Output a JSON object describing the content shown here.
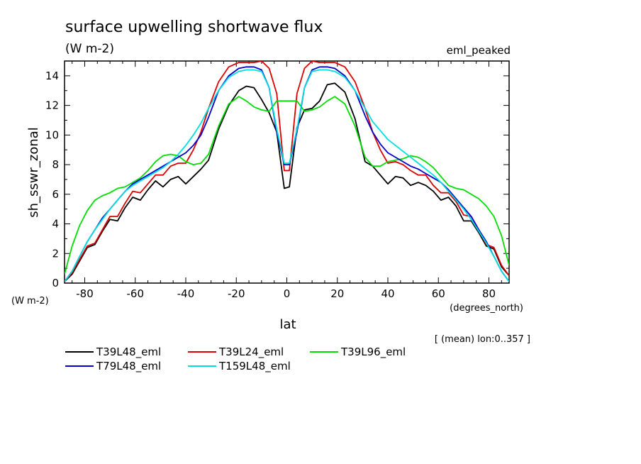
{
  "chart_data": {
    "type": "line",
    "title": "surface upwelling shortwave flux",
    "units": "(W m-2)",
    "tag": "eml_peaked",
    "ylabel": "sh_sswr_zonal",
    "yunits": "(W m-2)",
    "xlabel": "lat",
    "xunits": "(degrees_north)",
    "note": "[ (mean) lon:0..357 ]",
    "xlim": [
      -88,
      88
    ],
    "ylim": [
      0,
      15
    ],
    "xticks": [
      -80,
      -60,
      -40,
      -20,
      0,
      20,
      40,
      60,
      80
    ],
    "xtick_labels": [
      "-80",
      "-60",
      "-40",
      "-20",
      "0",
      "20",
      "40",
      "60",
      "80"
    ],
    "yticks": [
      0,
      2,
      4,
      6,
      8,
      10,
      12,
      14
    ],
    "ytick_labels": [
      "0",
      "2",
      "4",
      "6",
      "8",
      "10",
      "12",
      "14"
    ],
    "grid": false,
    "legend_position": "bottom",
    "series": [
      {
        "name": "T39L48_eml",
        "color": "#000000",
        "x": [
          -88,
          -85,
          -82,
          -79,
          -76,
          -73,
          -70,
          -67,
          -64,
          -61,
          -58,
          -55,
          -52,
          -49,
          -46,
          -43,
          -40,
          -37,
          -34,
          -31,
          -27,
          -23,
          -19,
          -16,
          -13,
          -10,
          -7,
          -4,
          -1,
          1,
          4,
          7,
          10,
          13,
          16,
          19,
          23,
          27,
          31,
          34,
          37,
          40,
          43,
          46,
          49,
          52,
          55,
          58,
          61,
          64,
          67,
          70,
          73,
          76,
          79,
          82,
          85,
          88
        ],
        "values": [
          0.1,
          0.6,
          1.5,
          2.4,
          2.6,
          3.5,
          4.3,
          4.2,
          5.1,
          5.8,
          5.6,
          6.3,
          6.9,
          6.5,
          7.0,
          7.2,
          6.7,
          7.2,
          7.7,
          8.3,
          10.4,
          12.0,
          13.0,
          13.3,
          13.2,
          12.4,
          11.5,
          10.2,
          6.4,
          6.5,
          10.5,
          11.7,
          11.8,
          12.3,
          13.4,
          13.5,
          12.9,
          11.1,
          8.2,
          7.9,
          7.3,
          6.7,
          7.2,
          7.1,
          6.6,
          6.8,
          6.6,
          6.2,
          5.6,
          5.8,
          5.2,
          4.2,
          4.2,
          3.4,
          2.5,
          2.3,
          1.1,
          0.5
        ]
      },
      {
        "name": "T39L24_eml",
        "color": "#dd0000",
        "x": [
          -88,
          -85,
          -82,
          -79,
          -76,
          -73,
          -70,
          -67,
          -64,
          -61,
          -58,
          -55,
          -52,
          -49,
          -46,
          -43,
          -40,
          -37,
          -34,
          -31,
          -27,
          -23,
          -19,
          -16,
          -13,
          -10,
          -7,
          -4,
          -1,
          1,
          4,
          7,
          10,
          13,
          16,
          19,
          23,
          27,
          31,
          34,
          37,
          40,
          43,
          46,
          49,
          52,
          55,
          58,
          61,
          64,
          67,
          70,
          73,
          76,
          79,
          82,
          85,
          88
        ],
        "values": [
          0.1,
          0.7,
          1.6,
          2.5,
          2.7,
          3.6,
          4.5,
          4.5,
          5.4,
          6.2,
          6.1,
          6.7,
          7.3,
          7.3,
          7.9,
          8.1,
          8.1,
          9.0,
          10.2,
          11.8,
          13.6,
          14.6,
          14.9,
          14.9,
          14.9,
          15.0,
          14.5,
          12.8,
          7.6,
          7.6,
          12.8,
          14.5,
          15.0,
          14.9,
          14.9,
          14.9,
          14.6,
          13.6,
          11.8,
          10.2,
          9.0,
          8.1,
          8.2,
          8.0,
          7.6,
          7.3,
          7.3,
          6.6,
          6.1,
          6.1,
          5.5,
          4.6,
          4.5,
          3.6,
          2.6,
          2.4,
          1.2,
          0.5
        ]
      },
      {
        "name": "T39L96_eml",
        "color": "#00dd00",
        "x": [
          -88,
          -85,
          -82,
          -79,
          -76,
          -73,
          -70,
          -67,
          -64,
          -61,
          -58,
          -55,
          -52,
          -49,
          -46,
          -43,
          -40,
          -37,
          -34,
          -31,
          -27,
          -23,
          -19,
          -16,
          -13,
          -10,
          -7,
          -4,
          -1,
          1,
          4,
          7,
          10,
          13,
          16,
          19,
          23,
          27,
          31,
          34,
          37,
          40,
          43,
          46,
          49,
          52,
          55,
          58,
          61,
          64,
          67,
          70,
          73,
          76,
          79,
          82,
          85,
          88
        ],
        "values": [
          0.6,
          2.5,
          3.9,
          4.9,
          5.6,
          5.9,
          6.1,
          6.4,
          6.5,
          6.8,
          7.1,
          7.6,
          8.2,
          8.6,
          8.7,
          8.6,
          8.2,
          8.0,
          8.1,
          8.7,
          10.6,
          12.1,
          12.6,
          12.3,
          11.9,
          11.7,
          11.6,
          12.3,
          12.3,
          12.3,
          12.3,
          11.6,
          11.7,
          11.9,
          12.3,
          12.6,
          12.1,
          10.6,
          8.5,
          7.9,
          7.9,
          8.2,
          8.3,
          8.4,
          8.6,
          8.5,
          8.2,
          7.8,
          7.2,
          6.6,
          6.4,
          6.3,
          6.0,
          5.7,
          5.2,
          4.5,
          3.2,
          1.2
        ]
      },
      {
        "name": "T79L48_eml",
        "color": "#0000cc",
        "x": [
          -88,
          -85,
          -82,
          -79,
          -76,
          -73,
          -70,
          -67,
          -64,
          -61,
          -58,
          -55,
          -52,
          -49,
          -46,
          -43,
          -40,
          -37,
          -34,
          -31,
          -27,
          -23,
          -19,
          -16,
          -13,
          -10,
          -7,
          -4,
          -1,
          1,
          4,
          7,
          10,
          13,
          16,
          19,
          23,
          27,
          31,
          34,
          37,
          40,
          43,
          46,
          49,
          52,
          55,
          58,
          61,
          64,
          67,
          70,
          73,
          76,
          79,
          82,
          85,
          88
        ],
        "values": [
          0.1,
          0.8,
          1.8,
          2.8,
          3.6,
          4.4,
          5.0,
          5.6,
          6.2,
          6.7,
          7.0,
          7.3,
          7.6,
          7.9,
          8.2,
          8.5,
          8.8,
          9.3,
          10.0,
          11.2,
          13.0,
          14.0,
          14.5,
          14.6,
          14.6,
          14.4,
          13.2,
          10.2,
          8.0,
          8.0,
          10.2,
          13.2,
          14.4,
          14.6,
          14.6,
          14.5,
          14.0,
          13.0,
          11.3,
          10.2,
          9.4,
          8.8,
          8.5,
          8.2,
          7.9,
          7.7,
          7.4,
          7.1,
          6.8,
          6.3,
          5.7,
          5.1,
          4.5,
          3.6,
          2.8,
          1.8,
          0.8,
          0.1
        ]
      },
      {
        "name": "T159L48_eml",
        "color": "#00dddd",
        "x": [
          -88,
          -85,
          -82,
          -79,
          -76,
          -73,
          -70,
          -67,
          -64,
          -61,
          -58,
          -55,
          -52,
          -49,
          -46,
          -43,
          -40,
          -37,
          -34,
          -31,
          -27,
          -23,
          -19,
          -16,
          -13,
          -10,
          -7,
          -4,
          -1,
          1,
          4,
          7,
          10,
          13,
          16,
          19,
          23,
          27,
          31,
          34,
          37,
          40,
          43,
          46,
          49,
          52,
          55,
          58,
          61,
          64,
          67,
          70,
          73,
          76,
          79,
          82,
          85,
          88
        ],
        "values": [
          0.1,
          0.8,
          1.8,
          2.8,
          3.6,
          4.3,
          5.0,
          5.6,
          6.2,
          6.6,
          6.9,
          7.2,
          7.5,
          7.8,
          8.2,
          8.7,
          9.3,
          10.0,
          10.8,
          11.8,
          13.0,
          13.9,
          14.3,
          14.4,
          14.4,
          14.3,
          13.2,
          10.4,
          8.1,
          8.1,
          10.4,
          13.2,
          14.3,
          14.4,
          14.4,
          14.3,
          13.9,
          13.0,
          11.8,
          10.9,
          10.3,
          9.7,
          9.3,
          8.9,
          8.5,
          8.1,
          7.7,
          7.3,
          6.8,
          6.2,
          5.6,
          5.0,
          4.3,
          3.5,
          2.7,
          1.8,
          0.8,
          0.1
        ]
      }
    ]
  }
}
